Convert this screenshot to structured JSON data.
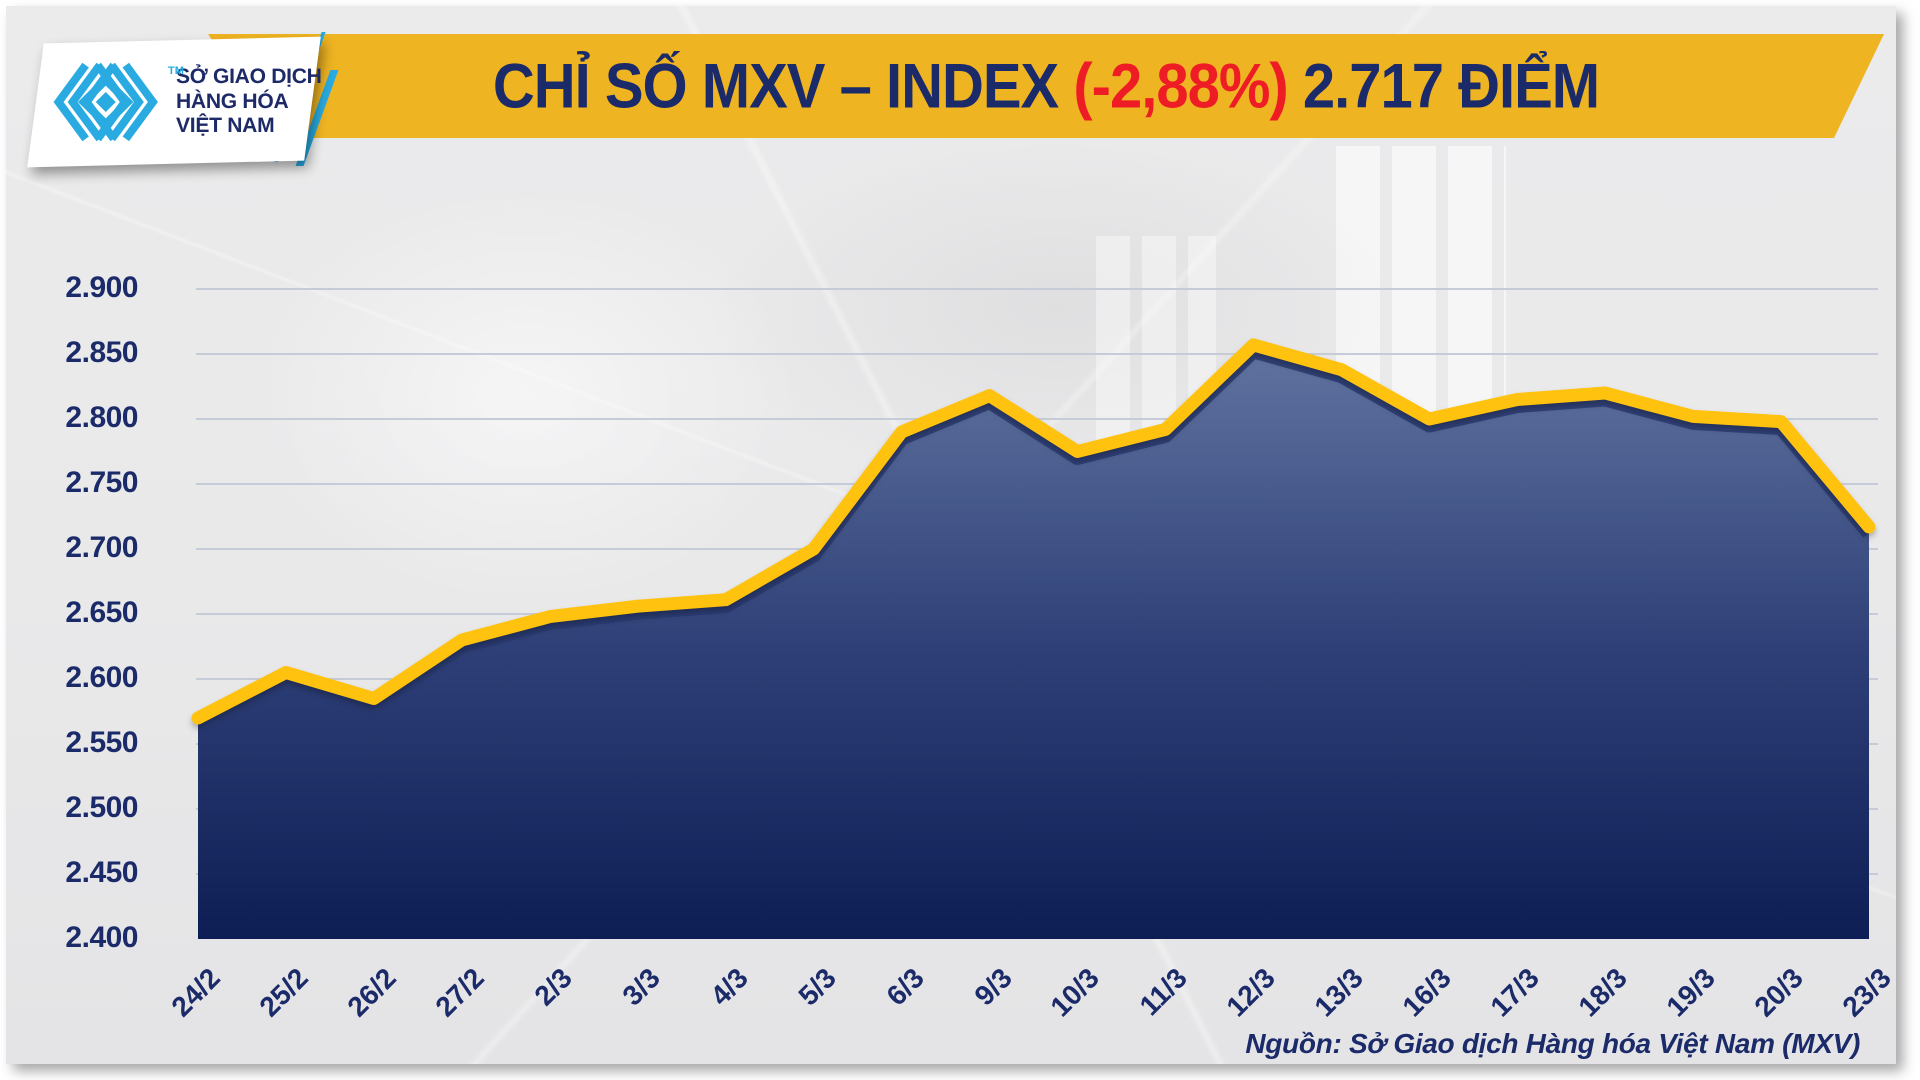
{
  "logo": {
    "brand_lines": [
      "SỞ GIAO DỊCH",
      "HÀNG HÓA",
      "VIỆT NAM"
    ],
    "trademark": "TM",
    "mark_color": "#29ABE2",
    "text_color": "#1E2A67"
  },
  "header": {
    "title_prefix": "CHỈ SỐ MXV – INDEX ",
    "title_change": "(-2,88%)",
    "title_suffix": " 2.717 ĐIỂM",
    "banner_color": "#EFB422",
    "title_color": "#1B2A69",
    "change_color": "#EE1C25"
  },
  "source_note": "Nguồn: Sở Giao dịch Hàng hóa Việt Nam (MXV)",
  "chart_data": {
    "type": "area",
    "title": "CHỈ SỐ MXV – INDEX (-2,88%) 2.717 ĐIỂM",
    "xlabel": "",
    "ylabel": "",
    "categories": [
      "24/2",
      "25/2",
      "26/2",
      "27/2",
      "2/3",
      "3/3",
      "4/3",
      "5/3",
      "6/3",
      "9/3",
      "10/3",
      "11/3",
      "12/3",
      "13/3",
      "16/3",
      "17/3",
      "18/3",
      "19/3",
      "20/3",
      "23/3"
    ],
    "values": [
      2570,
      2605,
      2585,
      2630,
      2648,
      2656,
      2661,
      2700,
      2790,
      2818,
      2775,
      2792,
      2857,
      2838,
      2800,
      2815,
      2820,
      2802,
      2798,
      2717
    ],
    "last_value": 2717,
    "change_percent": -2.88,
    "ylim": [
      2400,
      2900
    ],
    "grid": true,
    "legend": false,
    "yticks": [
      {
        "value": 2400,
        "label": "2.400"
      },
      {
        "value": 2450,
        "label": "2.450"
      },
      {
        "value": 2500,
        "label": "2.500"
      },
      {
        "value": 2550,
        "label": "2.550"
      },
      {
        "value": 2600,
        "label": "2.600"
      },
      {
        "value": 2650,
        "label": "2.650"
      },
      {
        "value": 2700,
        "label": "2.700"
      },
      {
        "value": 2750,
        "label": "2.750"
      },
      {
        "value": 2800,
        "label": "2.800"
      },
      {
        "value": 2850,
        "label": "2.850"
      },
      {
        "value": 2900,
        "label": "2.900"
      }
    ],
    "line_color": "#FFC20E",
    "line_shadow_color": "#2A3B72",
    "grid_color": "#C5CCD8",
    "label_color": "#1B2A69",
    "area_gradient_top": "#6A7DA8",
    "area_gradient_mid": "#2E4077",
    "area_gradient_bottom": "#0D1E55"
  }
}
